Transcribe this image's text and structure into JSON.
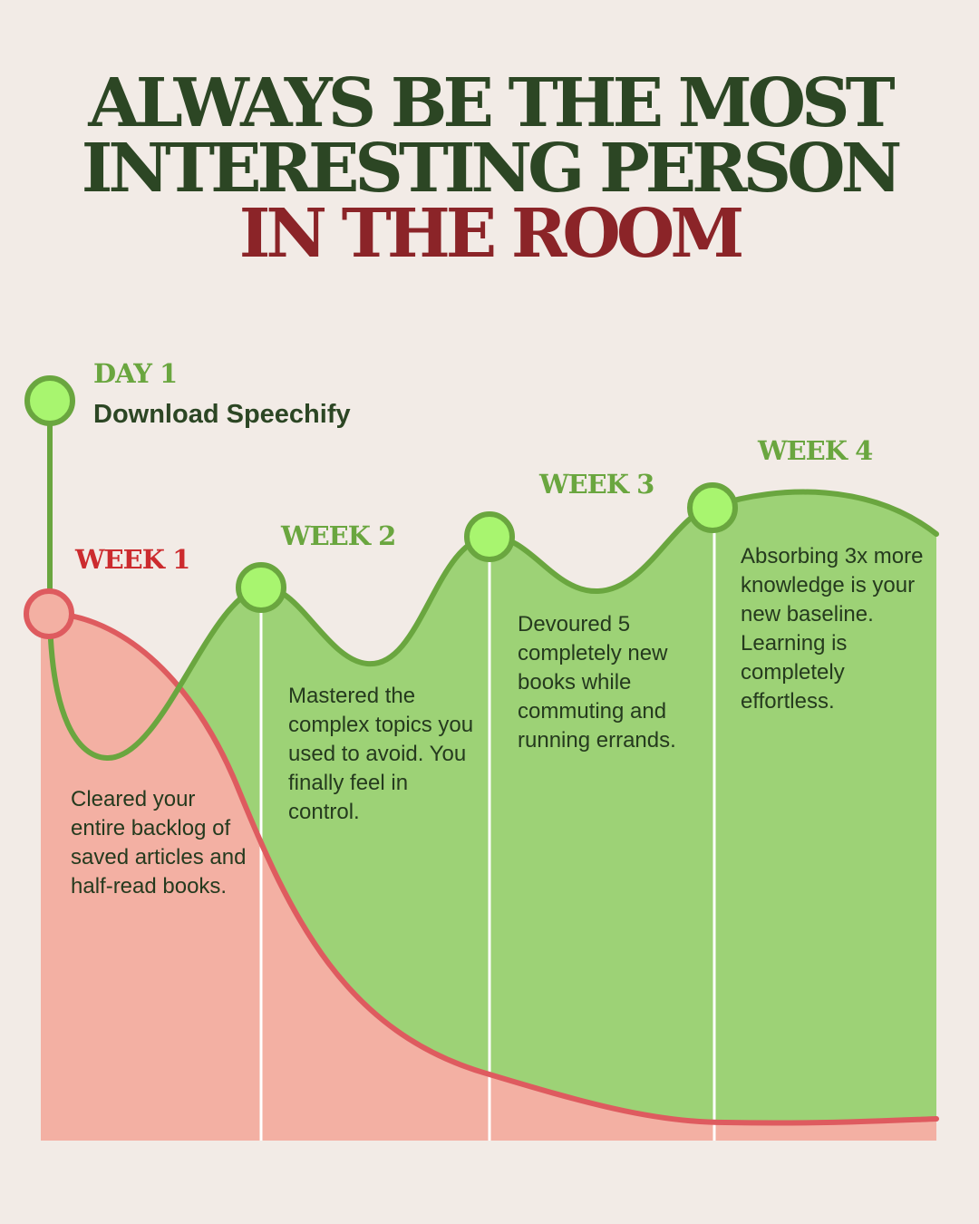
{
  "headline": {
    "line1": "ALWAYS BE THE MOST",
    "line2": "INTERESTING PERSON",
    "line3": "IN THE ROOM"
  },
  "colors": {
    "background": "#f2ebe6",
    "headline_dark_green": "#2c4624",
    "headline_red": "#8b2428",
    "green_area": "#9dd276",
    "green_line": "#6aa63f",
    "node_fill": "#a8f56f",
    "red_area": "#f3b0a3",
    "red_line": "#de5b5f",
    "red_label": "#cc2b2e"
  },
  "day1": {
    "label": "DAY 1",
    "action": "Download Speechify"
  },
  "weeks": [
    {
      "label": "WEEK 1",
      "text": "Cleared your entire backlog of saved articles and half-read books."
    },
    {
      "label": "WEEK 2",
      "text": "Mastered the complex topics you used to avoid. You finally feel in control."
    },
    {
      "label": "WEEK 3",
      "text": "Devoured 5 completely new books while commuting and running errands."
    },
    {
      "label": "WEEK 4",
      "text": "Absorbing 3x more knowledge is your new baseline. Learning is completely effortless."
    }
  ]
}
